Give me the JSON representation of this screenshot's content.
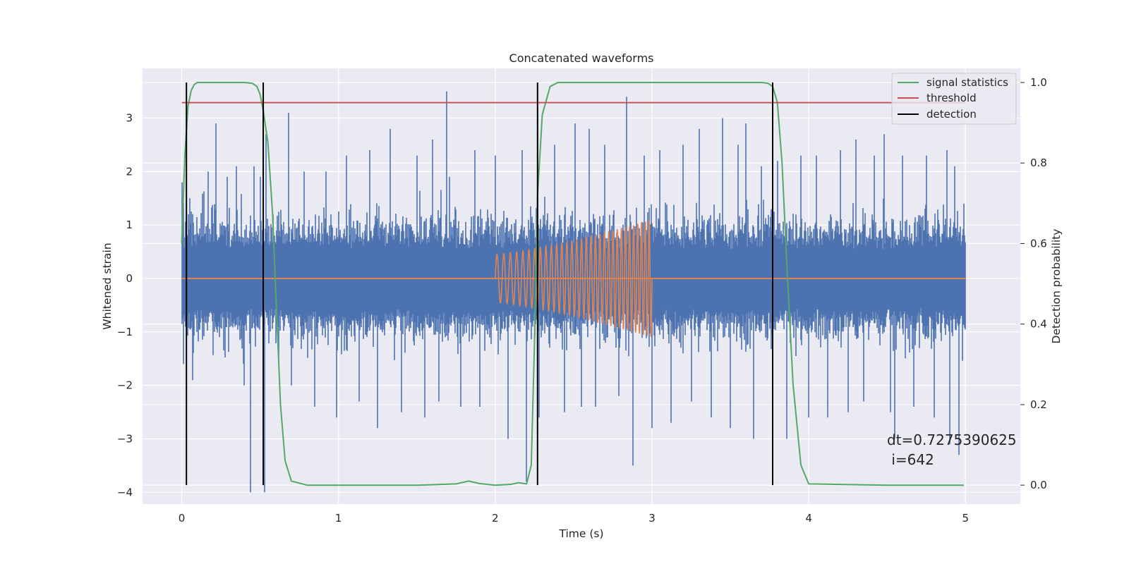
{
  "chart_data": {
    "type": "line",
    "title": "Concatenated waveforms",
    "xlabel": "Time (s)",
    "ylabel": "Whitened strain",
    "y2label": "Detection probability",
    "xlim": [
      -0.25,
      5.35
    ],
    "ylim": [
      -4.22,
      3.93
    ],
    "y2lim": [
      -0.047,
      1.035
    ],
    "xticks": [
      0,
      1,
      2,
      3,
      4,
      5
    ],
    "xtick_labels": [
      "0",
      "1",
      "2",
      "3",
      "4",
      "5"
    ],
    "yticks": [
      -4,
      -3,
      -2,
      -1,
      0,
      1,
      2,
      3
    ],
    "ytick_labels": [
      "−4",
      "−3",
      "−2",
      "−1",
      "0",
      "1",
      "2",
      "3"
    ],
    "y2ticks": [
      0.0,
      0.2,
      0.4,
      0.6,
      0.8,
      1.0
    ],
    "y2tick_labels": [
      "0.0",
      "0.2",
      "0.4",
      "0.6",
      "0.8",
      "1.0"
    ],
    "grid": true,
    "legend_position": "top-right",
    "legend": [
      {
        "label": "signal statistics",
        "color": "#55a868"
      },
      {
        "label": "threshold",
        "color": "#c44e52"
      },
      {
        "label": "detection",
        "color": "#000000"
      }
    ],
    "annotation": [
      "dt=0.7275390625",
      " i=642"
    ],
    "series": [
      {
        "role": "noise",
        "color": "#4c72b0",
        "x_range": [
          0,
          5
        ],
        "core_amplitude": 0.55,
        "peaks": [
          [
            0.0,
            1.8
          ],
          [
            0.01,
            -1.6
          ],
          [
            0.05,
            1.5
          ],
          [
            0.07,
            -1.9
          ],
          [
            0.17,
            2.0
          ],
          [
            0.22,
            2.9
          ],
          [
            0.29,
            1.9
          ],
          [
            0.35,
            2.1
          ],
          [
            0.4,
            -2.0
          ],
          [
            0.46,
            2.1
          ],
          [
            0.44,
            -4.0
          ],
          [
            0.5,
            1.9
          ],
          [
            0.53,
            -4.0
          ],
          [
            0.54,
            2.7
          ],
          [
            0.62,
            -1.6
          ],
          [
            0.68,
            3.1
          ],
          [
            0.7,
            -2.0
          ],
          [
            0.78,
            2.0
          ],
          [
            0.85,
            -2.4
          ],
          [
            0.92,
            2.0
          ],
          [
            0.99,
            -2.6
          ],
          [
            1.05,
            2.3
          ],
          [
            1.13,
            -2.3
          ],
          [
            1.2,
            2.4
          ],
          [
            1.25,
            -2.8
          ],
          [
            1.33,
            2.8
          ],
          [
            1.4,
            -2.5
          ],
          [
            1.5,
            2.3
          ],
          [
            1.55,
            -2.6
          ],
          [
            1.6,
            2.6
          ],
          [
            1.64,
            -2.3
          ],
          [
            1.69,
            3.5
          ],
          [
            1.71,
            1.9
          ],
          [
            1.78,
            -2.4
          ],
          [
            1.87,
            2.4
          ],
          [
            1.9,
            -2.4
          ],
          [
            2.0,
            2.3
          ],
          [
            2.08,
            -3.0
          ],
          [
            2.17,
            2.4
          ],
          [
            2.2,
            -3.8
          ],
          [
            2.27,
            3.2
          ],
          [
            2.28,
            -2.6
          ],
          [
            2.38,
            2.5
          ],
          [
            2.44,
            -2.5
          ],
          [
            2.51,
            2.9
          ],
          [
            2.55,
            -2.4
          ],
          [
            2.6,
            2.8
          ],
          [
            2.64,
            -2.4
          ],
          [
            2.7,
            2.5
          ],
          [
            2.79,
            -2.2
          ],
          [
            2.84,
            3.4
          ],
          [
            2.88,
            -3.5
          ],
          [
            2.95,
            2.3
          ],
          [
            3.0,
            -2.8
          ],
          [
            3.05,
            2.4
          ],
          [
            3.12,
            -2.7
          ],
          [
            3.2,
            2.5
          ],
          [
            3.25,
            -2.3
          ],
          [
            3.3,
            2.8
          ],
          [
            3.38,
            -2.6
          ],
          [
            3.45,
            3.0
          ],
          [
            3.5,
            -2.8
          ],
          [
            3.55,
            2.5
          ],
          [
            3.6,
            2.9
          ],
          [
            3.65,
            -3.0
          ],
          [
            3.7,
            2.1
          ],
          [
            3.8,
            2.2
          ],
          [
            3.86,
            -3.0
          ],
          [
            3.95,
            2.3
          ],
          [
            4.0,
            -2.6
          ],
          [
            4.05,
            2.3
          ],
          [
            4.12,
            -2.6
          ],
          [
            4.2,
            2.4
          ],
          [
            4.25,
            -2.5
          ],
          [
            4.3,
            2.6
          ],
          [
            4.35,
            -2.3
          ],
          [
            4.42,
            2.3
          ],
          [
            4.48,
            2.7
          ],
          [
            4.52,
            -2.5
          ],
          [
            4.55,
            -3.0
          ],
          [
            4.6,
            2.3
          ],
          [
            4.67,
            -2.4
          ],
          [
            4.75,
            2.3
          ],
          [
            4.8,
            -2.6
          ],
          [
            4.88,
            2.4
          ],
          [
            4.9,
            -3.1
          ],
          [
            4.93,
            2.1
          ],
          [
            4.96,
            -3.3
          ],
          [
            4.99,
            1.4
          ]
        ]
      },
      {
        "role": "chirp",
        "color": "#dd8452",
        "zero_line": [
          0,
          5
        ],
        "x_range": [
          2.0,
          3.0
        ],
        "amplitude_start": 0.45,
        "amplitude_end": 1.1,
        "cycles": 32
      },
      {
        "name": "signal statistics",
        "axis": "right",
        "color": "#55a868",
        "x": [
          0.0,
          0.02,
          0.04,
          0.06,
          0.08,
          0.1,
          0.15,
          0.2,
          0.3,
          0.4,
          0.45,
          0.48,
          0.5,
          0.52,
          0.55,
          0.58,
          0.6,
          0.63,
          0.66,
          0.7,
          0.8,
          1.0,
          1.5,
          1.75,
          1.83,
          1.9,
          2.0,
          2.1,
          2.15,
          2.2,
          2.23,
          2.25,
          2.27,
          2.3,
          2.35,
          2.4,
          2.5,
          3.0,
          3.5,
          3.7,
          3.74,
          3.77,
          3.8,
          3.83,
          3.86,
          3.9,
          3.95,
          4.0,
          4.5,
          4.99
        ],
        "y": [
          0.6,
          0.82,
          0.94,
          0.98,
          0.995,
          1.0,
          1.0,
          1.0,
          1.0,
          1.0,
          0.998,
          0.99,
          0.97,
          0.93,
          0.85,
          0.67,
          0.48,
          0.2,
          0.06,
          0.01,
          0.0,
          0.0,
          0.0,
          0.003,
          0.01,
          0.004,
          0.0,
          0.002,
          0.006,
          0.003,
          0.05,
          0.35,
          0.72,
          0.92,
          0.99,
          1.0,
          1.0,
          1.0,
          1.0,
          1.0,
          0.998,
          0.99,
          0.95,
          0.8,
          0.55,
          0.25,
          0.05,
          0.003,
          0.0,
          0.0
        ]
      },
      {
        "name": "threshold",
        "axis": "right",
        "color": "#c44e52",
        "x": [
          0.0,
          5.0
        ],
        "y": [
          0.95,
          0.95
        ]
      },
      {
        "name": "detection",
        "axis": "right",
        "color": "#000000",
        "x": [
          0.03,
          0.52,
          2.27,
          3.77
        ]
      }
    ]
  }
}
